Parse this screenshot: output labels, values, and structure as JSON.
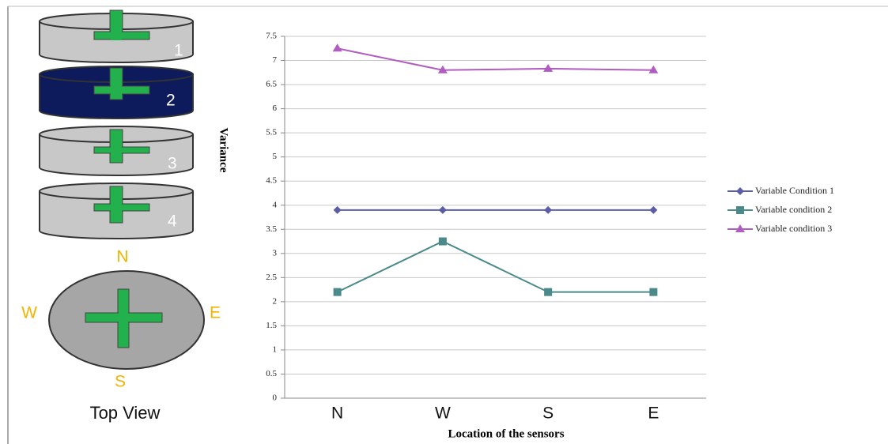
{
  "diagram": {
    "cylinders": [
      "1",
      "2",
      "3",
      "4"
    ],
    "directions": {
      "north": "N",
      "west": "W",
      "east": "E",
      "south": "S"
    },
    "caption": "Top View"
  },
  "chart_data": {
    "type": "line",
    "y_label": "Variance",
    "x_label": "Location of the sensors",
    "categories": [
      "N",
      "W",
      "S",
      "E"
    ],
    "series": [
      {
        "name": "Variable Condition 1",
        "color": "#5b5ea6",
        "marker": "diamond",
        "values": [
          3.9,
          3.9,
          3.9,
          3.9
        ]
      },
      {
        "name": "Variable condition 2",
        "color": "#4a8a8a",
        "marker": "square",
        "values": [
          2.2,
          3.25,
          2.2,
          2.2
        ]
      },
      {
        "name": "Variable condition 3",
        "color": "#b05cc0",
        "marker": "triangle",
        "values": [
          7.25,
          6.8,
          6.83,
          6.8
        ]
      }
    ],
    "ylim": [
      0,
      7.5
    ],
    "yticks": [
      0,
      0.5,
      1,
      1.5,
      2,
      2.5,
      3,
      3.5,
      4,
      4.5,
      5,
      5.5,
      6,
      6.5,
      7,
      7.5
    ],
    "grid": true,
    "legend": "right"
  }
}
